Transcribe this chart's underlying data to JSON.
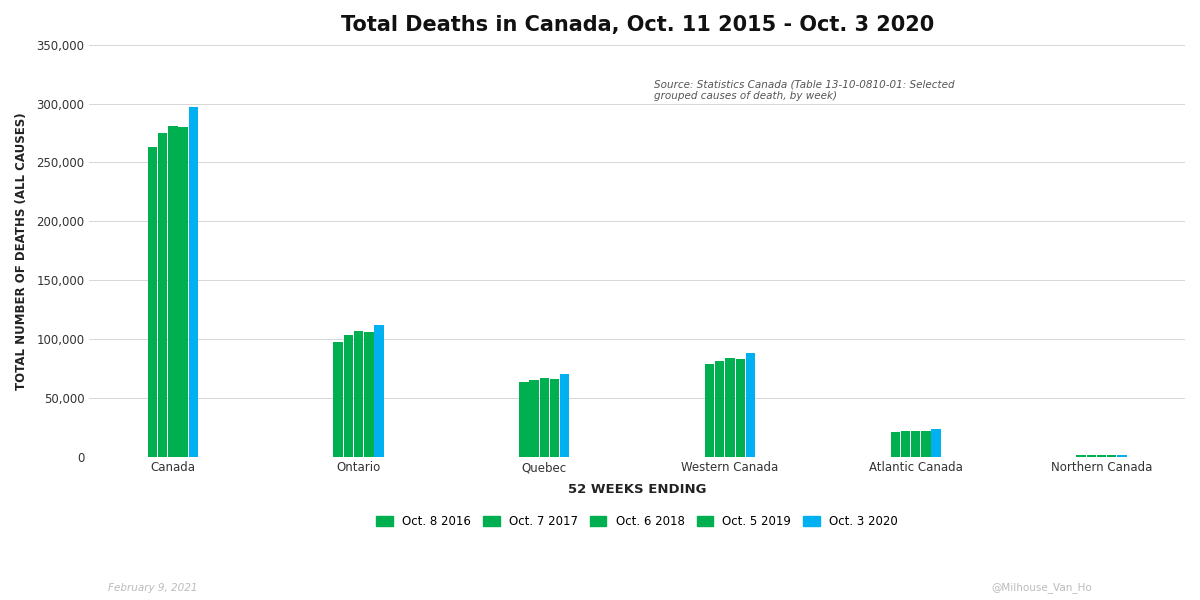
{
  "title": "Total Deaths in Canada, Oct. 11 2015 - Oct. 3 2020",
  "xlabel": "52 WEEKS ENDING",
  "ylabel": "TOTAL NUMBER OF DEATHS (ALL CAUSES)",
  "source_text": "Source: Statistics Canada (Table 13-10-0810-01: Selected\ngrouped causes of death, by week)",
  "footer_left": "February 9, 2021",
  "footer_right": "@Milhouse_Van_Ho",
  "categories": [
    "Canada",
    "Ontario",
    "Quebec",
    "Western Canada",
    "Atlantic Canada",
    "Northern Canada"
  ],
  "series": [
    {
      "label": "Oct. 8 2016",
      "color": "#00b050",
      "values": [
        263000,
        97000,
        63000,
        79000,
        20500,
        900
      ]
    },
    {
      "label": "Oct. 7 2017",
      "color": "#00b050",
      "values": [
        275000,
        103000,
        65000,
        81000,
        21500,
        1000
      ]
    },
    {
      "label": "Oct. 6 2018",
      "color": "#00b050",
      "values": [
        281000,
        107000,
        66500,
        83500,
        22000,
        1100
      ]
    },
    {
      "label": "Oct. 5 2019",
      "color": "#00b050",
      "values": [
        280000,
        106000,
        66000,
        83000,
        22000,
        1100
      ]
    },
    {
      "label": "Oct. 3 2020",
      "color": "#00b0f0",
      "values": [
        297000,
        112000,
        70000,
        88000,
        23500,
        1200
      ]
    }
  ],
  "ylim": [
    0,
    350000
  ],
  "yticks": [
    0,
    50000,
    100000,
    150000,
    200000,
    250000,
    300000,
    350000
  ],
  "bg_color": "#ffffff",
  "plot_bg_color": "#ffffff",
  "grid_color": "#d0d0d0",
  "title_fontsize": 15,
  "axis_label_fontsize": 8.5,
  "tick_fontsize": 8.5,
  "legend_fontsize": 8.5,
  "source_fontsize": 7.5,
  "footer_fontsize": 7.5
}
